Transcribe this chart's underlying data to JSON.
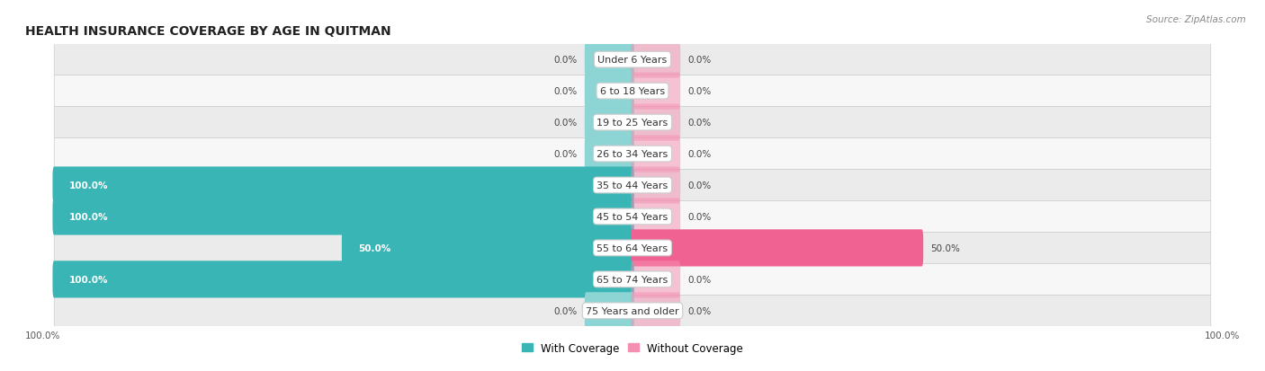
{
  "title": "HEALTH INSURANCE COVERAGE BY AGE IN QUITMAN",
  "source": "Source: ZipAtlas.com",
  "categories": [
    "Under 6 Years",
    "6 to 18 Years",
    "19 to 25 Years",
    "26 to 34 Years",
    "35 to 44 Years",
    "45 to 54 Years",
    "55 to 64 Years",
    "65 to 74 Years",
    "75 Years and older"
  ],
  "with_coverage": [
    0.0,
    0.0,
    0.0,
    0.0,
    100.0,
    100.0,
    50.0,
    100.0,
    0.0
  ],
  "without_coverage": [
    0.0,
    0.0,
    0.0,
    0.0,
    0.0,
    0.0,
    50.0,
    0.0,
    0.0
  ],
  "color_with": "#3ab5b5",
  "color_with_light": "#8dd4d4",
  "color_without": "#f48fb1",
  "color_without_bright": "#f06292",
  "bg_row_odd": "#ebebeb",
  "bg_row_even": "#f7f7f7",
  "xlim_left": -100,
  "xlim_right": 100,
  "bar_height": 0.62,
  "stub_size": 8,
  "legend_labels": [
    "With Coverage",
    "Without Coverage"
  ]
}
